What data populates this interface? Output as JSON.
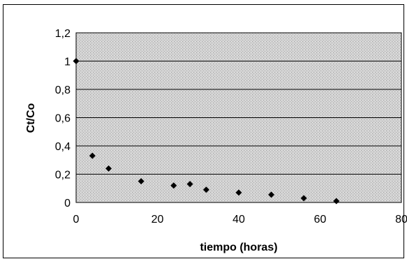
{
  "chart_data": {
    "type": "scatter",
    "title": "",
    "xlabel": "tiempo (horas)",
    "ylabel": "Ct/Co",
    "xlim": [
      0,
      80
    ],
    "ylim": [
      0,
      1.2
    ],
    "x_ticks": [
      0,
      20,
      40,
      60,
      80
    ],
    "y_ticks": [
      0,
      0.2,
      0.4,
      0.6,
      0.8,
      1,
      1.2
    ],
    "x_tick_labels": [
      "0",
      "20",
      "40",
      "60",
      "80"
    ],
    "y_tick_labels": [
      "0",
      "0,2",
      "0,4",
      "0,6",
      "0,8",
      "1",
      "1,2"
    ],
    "grid": true,
    "legend": "none",
    "marker": "diamond",
    "marker_color": "#000000",
    "plot_background": "#d9d9d9",
    "series": [
      {
        "x": [
          0,
          4,
          8,
          16,
          24,
          28,
          32,
          40,
          48,
          56,
          64
        ],
        "y": [
          1.0,
          0.33,
          0.24,
          0.15,
          0.12,
          0.13,
          0.09,
          0.07,
          0.055,
          0.03,
          0.01
        ]
      }
    ]
  }
}
